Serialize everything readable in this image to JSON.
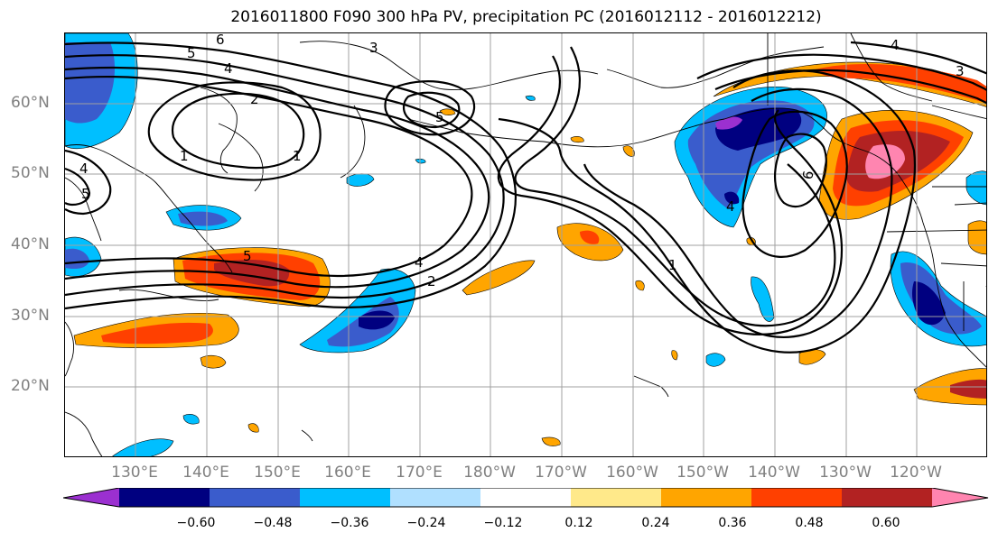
{
  "title": "2016011800 F090 300 hPa PV, precipitation PC (2016012112 - 2016012212)",
  "map": {
    "latitude_labels": [
      "60°N",
      "50°N",
      "40°N",
      "30°N",
      "20°N"
    ],
    "longitude_labels": [
      "130°E",
      "140°E",
      "150°E",
      "160°E",
      "170°E",
      "180°W",
      "170°W",
      "160°W",
      "150°W",
      "140°W",
      "130°W",
      "120°W"
    ],
    "pv_contour_labels": [
      "6",
      "5",
      "4",
      "3",
      "2",
      "1",
      "1",
      "5",
      "4",
      "5",
      "5",
      "4",
      "2",
      "1",
      "6",
      "4",
      "4",
      "3"
    ]
  },
  "colorbar": {
    "tick_labels": [
      "−0.60",
      "−0.48",
      "−0.36",
      "−0.24",
      "−0.12",
      "0.12",
      "0.24",
      "0.36",
      "0.48",
      "0.60"
    ],
    "colors": [
      "#9b30d0",
      "#000080",
      "#3a5ccc",
      "#00bfff",
      "#b0e0ff",
      "#ffffff",
      "#ffe98a",
      "#ffa500",
      "#ff4000",
      "#b22222",
      "#ff85b0"
    ]
  }
}
